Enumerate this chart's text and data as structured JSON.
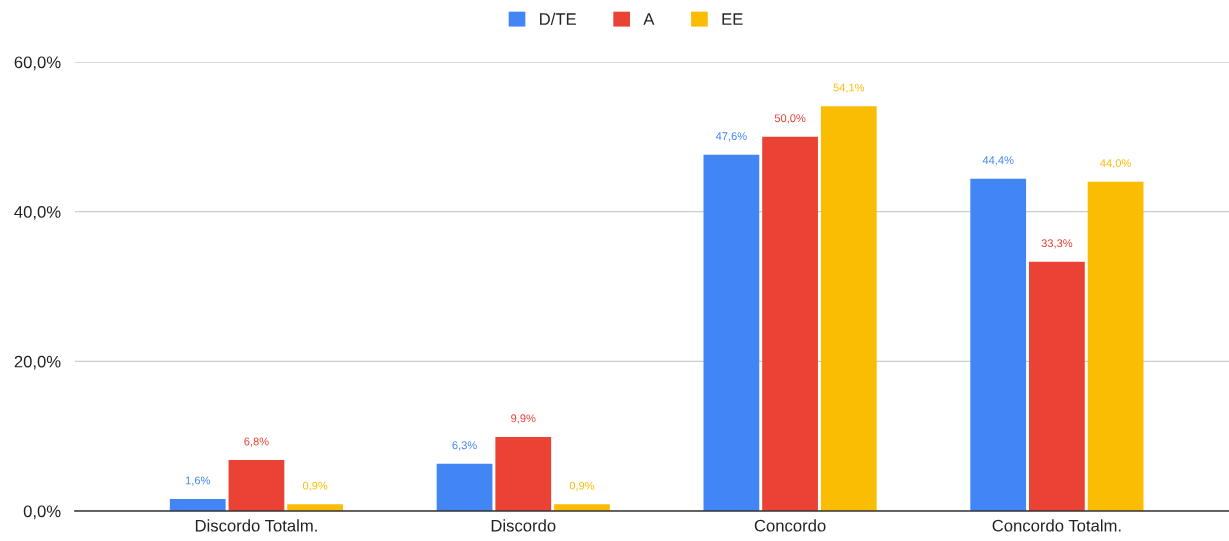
{
  "chart_data": {
    "type": "bar",
    "categories": [
      "Discordo Totalm.",
      "Discordo",
      "Concordo",
      "Concordo Totalm."
    ],
    "series": [
      {
        "name": "D/TE",
        "color": "#4285f4",
        "values": [
          1.6,
          6.3,
          47.6,
          44.4
        ],
        "value_labels": [
          "1,6%",
          "6,3%",
          "47,6%",
          "44,4%"
        ]
      },
      {
        "name": "A",
        "color": "#ea4335",
        "values": [
          6.8,
          9.9,
          50.0,
          33.3
        ],
        "value_labels": [
          "6,8%",
          "9,9%",
          "50,0%",
          "33,3%"
        ]
      },
      {
        "name": "EE",
        "color": "#fbbc04",
        "values": [
          0.9,
          0.9,
          54.1,
          44.0
        ],
        "value_labels": [
          "0,9%",
          "0,9%",
          "54,1%",
          "44,0%"
        ]
      }
    ],
    "ylim": [
      0,
      60
    ],
    "yticks": [
      {
        "value": 0,
        "label": "0,0%"
      },
      {
        "value": 20,
        "label": "20,0%"
      },
      {
        "value": 40,
        "label": "40,0%"
      },
      {
        "value": 60,
        "label": "60,0%"
      }
    ],
    "grid": "y",
    "legend": "top"
  }
}
